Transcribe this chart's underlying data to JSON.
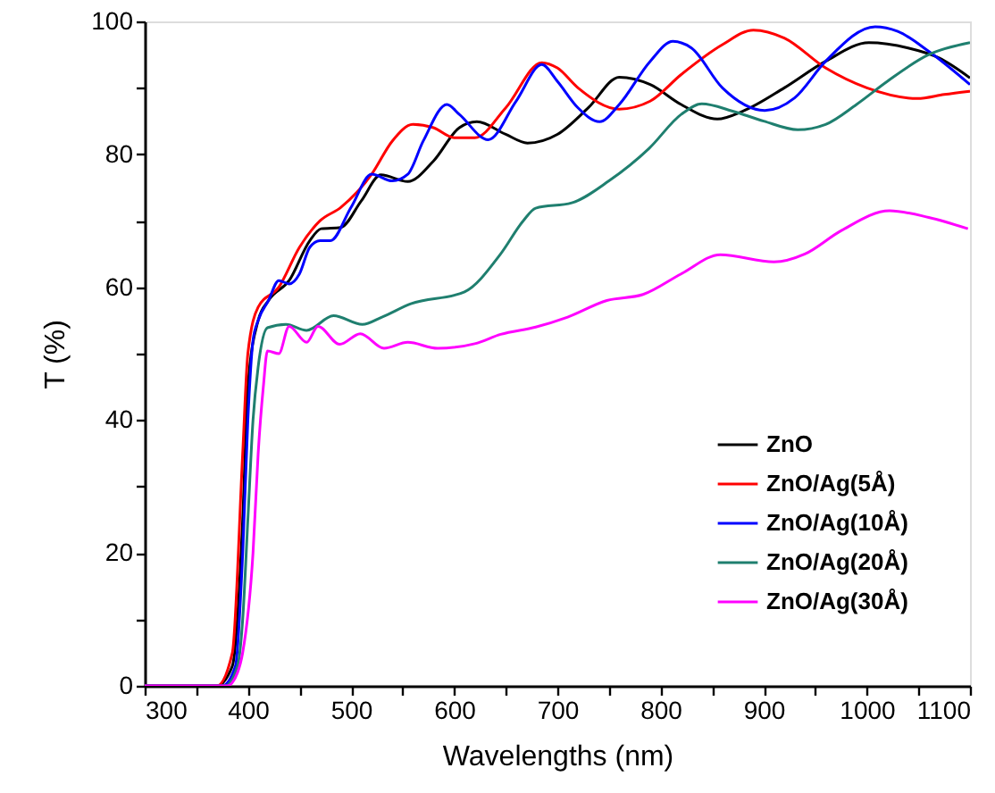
{
  "chart_data": {
    "type": "line",
    "xlabel": "Wavelengths (nm)",
    "ylabel": "T (%)",
    "xlim": [
      300,
      1100
    ],
    "ylim": [
      0,
      100
    ],
    "xticks": [
      300,
      {
        "value": 350,
        "label": null
      },
      400,
      {
        "value": 450,
        "label": null
      },
      500,
      {
        "value": 550,
        "label": null
      },
      600,
      {
        "value": 650,
        "label": null
      },
      700,
      {
        "value": 750,
        "label": null
      },
      800,
      {
        "value": 850,
        "label": null
      },
      900,
      {
        "value": 950,
        "label": null
      },
      1000,
      {
        "value": 1050,
        "label": null
      },
      1100
    ],
    "yticks": [
      0,
      {
        "value": 10,
        "label": null
      },
      20,
      {
        "value": 30,
        "label": null
      },
      40,
      {
        "value": 50,
        "label": null
      },
      60,
      {
        "value": 70,
        "label": null
      },
      80,
      {
        "value": 90,
        "label": null
      },
      100
    ],
    "grid": false,
    "legend": "right",
    "marker": "none",
    "line_style": "solid",
    "series": [
      {
        "name": "ZnO",
        "color": "#000000",
        "x": [
          300,
          370,
          385,
          395,
          400,
          410,
          420,
          440,
          460,
          471,
          490,
          510,
          529,
          555,
          580,
          605,
          622,
          650,
          671,
          700,
          730,
          760,
          790,
          820,
          855,
          880,
          920,
          960,
          1002,
          1040,
          1070,
          1100
        ],
        "values": [
          0,
          0,
          3,
          25,
          45,
          55,
          58,
          61,
          67,
          68.8,
          69,
          73,
          76.9,
          75.9,
          79,
          84,
          84.9,
          83,
          81.7,
          83,
          87,
          91.6,
          90.5,
          87.5,
          85.3,
          86.5,
          90,
          94,
          96.8,
          96,
          94.5,
          91.5
        ]
      },
      {
        "name": "ZnO/Ag(5Å)",
        "color": "#ff0000",
        "x": [
          300,
          370,
          385,
          395,
          400,
          410,
          430,
          450,
          470,
          490,
          520,
          540,
          560,
          580,
          600,
          620,
          650,
          685,
          700,
          720,
          760,
          790,
          820,
          860,
          890,
          920,
          960,
          1000,
          1049,
          1075,
          1100
        ],
        "values": [
          0,
          0,
          5,
          35,
          50,
          57,
          60,
          66,
          70,
          72,
          77,
          82,
          84.5,
          84,
          82.5,
          82.5,
          87,
          93.8,
          93,
          90,
          86.8,
          88,
          92,
          96.5,
          98.7,
          97.5,
          93,
          90,
          88.4,
          89,
          89.5
        ]
      },
      {
        "name": "ZnO/Ag(10Å)",
        "color": "#0000ff",
        "x": [
          300,
          375,
          388,
          395,
          400,
          405,
          410,
          420,
          430,
          440,
          450,
          460,
          470,
          480,
          500,
          520,
          540,
          555,
          570,
          593,
          605,
          633,
          660,
          685,
          700,
          720,
          741,
          760,
          790,
          812,
          830,
          860,
          901,
          930,
          960,
          1008,
          1030,
          1060,
          1100
        ],
        "values": [
          0,
          0,
          3,
          20,
          40,
          52,
          55,
          58,
          61,
          60.5,
          62,
          66,
          67,
          67,
          72,
          77,
          76,
          77,
          82,
          87.5,
          86,
          82.2,
          88,
          93.5,
          91,
          87,
          84.9,
          87.5,
          94,
          97,
          96,
          90,
          86.6,
          88.5,
          94,
          99.2,
          98.5,
          95.5,
          90.5
        ]
      },
      {
        "name": "ZnO/Ag(20Å)",
        "color": "#1f7f6f",
        "x": [
          300,
          378,
          390,
          395,
          400,
          405,
          410,
          419,
          437,
          457,
          483,
          511,
          530,
          558,
          610,
          645,
          667,
          679,
          714,
          750,
          789,
          820,
          840,
          870,
          900,
          933,
          960,
          990,
          1020,
          1060,
          1100
        ],
        "values": [
          0,
          0,
          3,
          10,
          25,
          40,
          48,
          53.9,
          54.4,
          53.5,
          55.7,
          54.4,
          55.5,
          57.5,
          59.3,
          65,
          70,
          71.9,
          72.7,
          76,
          80.9,
          86,
          87.6,
          86.5,
          85,
          83.7,
          84.5,
          87.5,
          91,
          95,
          96.8
        ]
      },
      {
        "name": "ZnO/Ag(30Å)",
        "color": "#ff00ff",
        "x": [
          300,
          380,
          390,
          395,
          405,
          410,
          415,
          419,
          430,
          440,
          457,
          468,
          489,
          509,
          532,
          555,
          584,
          620,
          645,
          679,
          710,
          748,
          783,
          820,
          858,
          910,
          940,
          975,
          1022,
          1060,
          1098
        ],
        "values": [
          0,
          0,
          2,
          5,
          20,
          35,
          45,
          50.4,
          50,
          54.1,
          51.7,
          54.1,
          51.4,
          53,
          50.8,
          51.7,
          50.8,
          51.5,
          52.9,
          54,
          55.5,
          58,
          58.9,
          62,
          64.9,
          63.8,
          65,
          68.5,
          71.5,
          70.5,
          68.8
        ]
      }
    ]
  }
}
